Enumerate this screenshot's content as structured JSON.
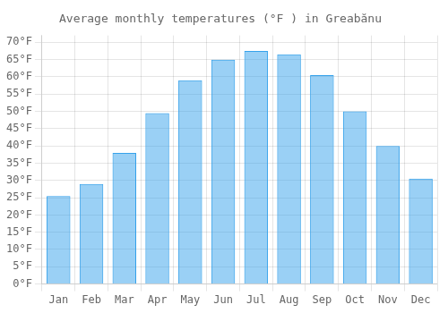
{
  "chart_data": {
    "type": "bar",
    "title": "Average monthly temperatures (°F ) in Greabănu",
    "categories": [
      "Jan",
      "Feb",
      "Mar",
      "Apr",
      "May",
      "Jun",
      "Jul",
      "Aug",
      "Sep",
      "Oct",
      "Nov",
      "Dec"
    ],
    "values": [
      25.5,
      29.0,
      38.0,
      49.5,
      59.0,
      65.0,
      67.5,
      66.5,
      60.5,
      50.0,
      40.0,
      30.5
    ],
    "ylim": [
      0,
      72
    ],
    "yticks": [
      {
        "value": 0,
        "label": "0°F"
      },
      {
        "value": 5,
        "label": "5°F"
      },
      {
        "value": 10,
        "label": "10°F"
      },
      {
        "value": 15,
        "label": "15°F"
      },
      {
        "value": 20,
        "label": "20°F"
      },
      {
        "value": 25,
        "label": "25°F"
      },
      {
        "value": 30,
        "label": "30°F"
      },
      {
        "value": 35,
        "label": "35°F"
      },
      {
        "value": 40,
        "label": "40°F"
      },
      {
        "value": 45,
        "label": "45°F"
      },
      {
        "value": 50,
        "label": "50°F"
      },
      {
        "value": 55,
        "label": "55°F"
      },
      {
        "value": 60,
        "label": "60°F"
      },
      {
        "value": 65,
        "label": "65°F"
      },
      {
        "value": 70,
        "label": "70°F"
      }
    ],
    "grid": true
  }
}
